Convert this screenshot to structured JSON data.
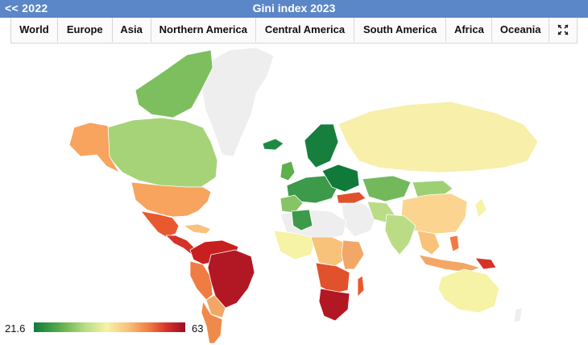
{
  "header": {
    "prev_label": "<< 2022",
    "title": "Gini index 2023"
  },
  "tabs": [
    {
      "label": "World"
    },
    {
      "label": "Europe"
    },
    {
      "label": "Asia"
    },
    {
      "label": "Northern America"
    },
    {
      "label": "Central America"
    },
    {
      "label": "South America"
    },
    {
      "label": "Africa"
    },
    {
      "label": "Oceania"
    }
  ],
  "expand_icon": "fullscreen-icon",
  "legend": {
    "min": "21.6",
    "max": "63"
  },
  "colors": {
    "header_bg": "#5b86c7",
    "low": "#0f7a3a",
    "mid": "#f6f2a6",
    "high": "#9d0b22",
    "no_data": "#eeeeee"
  }
}
